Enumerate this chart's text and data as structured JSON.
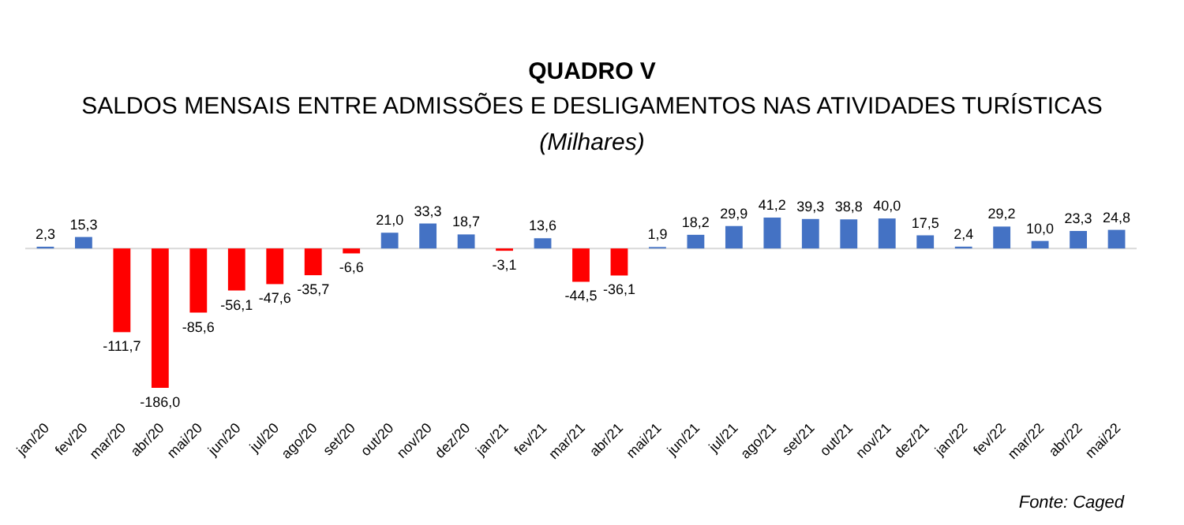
{
  "chart_data": {
    "type": "bar",
    "title": "QUADRO V",
    "subtitle": "SALDOS MENSAIS ENTRE ADMISSÕES E DESLIGAMENTOS NAS ATIVIDADES TURÍSTICAS",
    "ylabel": "(Milhares)",
    "categories": [
      "jan/20",
      "fev/20",
      "mar/20",
      "abr/20",
      "mai/20",
      "jun/20",
      "jul/20",
      "ago/20",
      "set/20",
      "out/20",
      "nov/20",
      "dez/20",
      "jan/21",
      "fev/21",
      "mar/21",
      "abr/21",
      "mai/21",
      "jun/21",
      "jul/21",
      "ago/21",
      "set/21",
      "out/21",
      "nov/21",
      "dez/21",
      "jan/22",
      "fev/22",
      "mar/22",
      "abr/22",
      "mai/22"
    ],
    "values": [
      2.3,
      15.3,
      -111.7,
      -186.0,
      -85.6,
      -56.1,
      -47.6,
      -35.7,
      -6.6,
      21.0,
      33.3,
      18.7,
      -3.1,
      13.6,
      -44.5,
      -36.1,
      1.9,
      18.2,
      29.9,
      41.2,
      39.3,
      38.8,
      40.0,
      17.5,
      2.4,
      29.2,
      10.0,
      23.3,
      24.8
    ],
    "value_labels": [
      "2,3",
      "15,3",
      "-111,7",
      "-186,0",
      "-85,6",
      "-56,1",
      "-47,6",
      "-35,7",
      "-6,6",
      "21,0",
      "33,3",
      "18,7",
      "-3,1",
      "13,6",
      "-44,5",
      "-36,1",
      "1,9",
      "18,2",
      "29,9",
      "41,2",
      "39,3",
      "38,8",
      "40,0",
      "17,5",
      "2,4",
      "29,2",
      "10,0",
      "23,3",
      "24,8"
    ],
    "colors": [
      "#4472c4",
      "#4472c4",
      "#ff0000",
      "#ff0000",
      "#ff0000",
      "#ff0000",
      "#ff0000",
      "#ff0000",
      "#ff0000",
      "#4472c4",
      "#4472c4",
      "#4472c4",
      "#ff0000",
      "#4472c4",
      "#ff0000",
      "#ff0000",
      "#4472c4",
      "#4472c4",
      "#4472c4",
      "#4472c4",
      "#4472c4",
      "#4472c4",
      "#4472c4",
      "#4472c4",
      "#4472c4",
      "#4472c4",
      "#4472c4",
      "#4472c4",
      "#4472c4"
    ],
    "annotations": [
      "Fonte: Caged"
    ]
  }
}
